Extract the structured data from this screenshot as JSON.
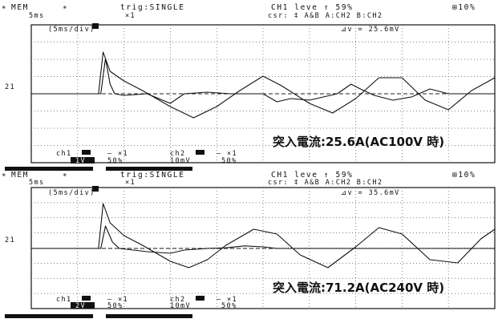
{
  "chart_data": [
    {
      "type": "line",
      "header": {
        "mode": "MEM",
        "star": "∗",
        "timebase": "5ms",
        "trig": "trig:SINGLE",
        "trig_level": "CH1 leve ↑  59%",
        "cursor": "csr: ‡  A&B  A:CH2 B:CH2",
        "pretrig": "⊞10%",
        "mag": "×1",
        "div": "(5ms/div)",
        "delta": "⊿v = 25.6mV",
        "ch_label": "21"
      },
      "footer": {
        "ch1": "ch1",
        "ch1_coupling": "1V",
        "ch1_mag": "— ×1",
        "ch1_pos": "50%",
        "ch2": "ch2",
        "ch2_v": "10mV",
        "ch2_mag": "— ×1",
        "ch2_pos": "50%"
      },
      "annotation": "突入電流:25.6A(AC100V 時)",
      "x_divisions": 10,
      "y_divisions": 8,
      "series": [
        {
          "points": [
            [
              0,
              0
            ],
            [
              1.5,
              0
            ],
            [
              1.6,
              1.1
            ],
            [
              1.7,
              0.3
            ],
            [
              1.8,
              0
            ],
            [
              2.0,
              -0.05
            ],
            [
              2.5,
              0
            ],
            [
              3.0,
              -0.3
            ],
            [
              3.3,
              0
            ],
            [
              3.8,
              0.05
            ],
            [
              4.3,
              0
            ],
            [
              5.0,
              0
            ],
            [
              5.3,
              -0.25
            ],
            [
              5.6,
              -0.15
            ],
            [
              6.0,
              -0.2
            ],
            [
              6.6,
              0
            ],
            [
              6.9,
              0.3
            ],
            [
              7.1,
              0.15
            ],
            [
              7.4,
              -0.05
            ],
            [
              7.8,
              -0.2
            ],
            [
              8.2,
              -0.1
            ],
            [
              8.6,
              0.15
            ],
            [
              9.0,
              0
            ],
            [
              10,
              0
            ]
          ]
        },
        {
          "points": [
            [
              0,
              0
            ],
            [
              1.45,
              0
            ],
            [
              1.55,
              1.3
            ],
            [
              1.7,
              0.7
            ],
            [
              2.0,
              0.4
            ],
            [
              2.4,
              0.1
            ],
            [
              3.0,
              -0.4
            ],
            [
              3.5,
              -0.75
            ],
            [
              4.0,
              -0.4
            ],
            [
              4.5,
              0.1
            ],
            [
              5.0,
              0.55
            ],
            [
              5.4,
              0.25
            ],
            [
              6.0,
              -0.3
            ],
            [
              6.5,
              -0.6
            ],
            [
              7.0,
              -0.15
            ],
            [
              7.5,
              0.5
            ],
            [
              8.0,
              0.5
            ],
            [
              8.5,
              -0.2
            ],
            [
              9.0,
              -0.5
            ],
            [
              9.5,
              0.1
            ],
            [
              10,
              0.5
            ]
          ]
        }
      ]
    },
    {
      "type": "line",
      "header": {
        "mode": "MEM",
        "star": "∗",
        "timebase": "5ms",
        "trig": "trig:SINGLE",
        "trig_level": "CH1 leve ↑  59%",
        "cursor": "csr: ‡  A&B  A:CH2 B:CH2",
        "pretrig": "⊞10%",
        "mag": "×1",
        "div": "(5ms/div)",
        "delta": "⊿v = 35.6mV",
        "ch_label": "21"
      },
      "footer": {
        "ch1": "ch1",
        "ch1_coupling": "2V",
        "ch1_mag": "— ×1",
        "ch1_pos": "50%",
        "ch2": "ch2",
        "ch2_v": "10mV",
        "ch2_mag": "— ×1",
        "ch2_pos": "50%"
      },
      "annotation": "突入電流:71.2A(AC240V 時)",
      "x_divisions": 10,
      "y_divisions": 8,
      "series": [
        {
          "points": [
            [
              0,
              0
            ],
            [
              1.5,
              0
            ],
            [
              1.6,
              0.7
            ],
            [
              1.75,
              0.2
            ],
            [
              1.9,
              0
            ],
            [
              2.5,
              -0.1
            ],
            [
              3.0,
              -0.15
            ],
            [
              3.3,
              -0.05
            ],
            [
              3.8,
              0
            ],
            [
              4.2,
              0.02
            ],
            [
              4.6,
              0.08
            ],
            [
              5.0,
              0.05
            ],
            [
              5.3,
              0
            ],
            [
              10,
              0
            ]
          ]
        },
        {
          "points": [
            [
              0,
              0
            ],
            [
              1.45,
              0
            ],
            [
              1.55,
              1.4
            ],
            [
              1.7,
              0.8
            ],
            [
              2.0,
              0.4
            ],
            [
              2.4,
              0.1
            ],
            [
              3.0,
              -0.4
            ],
            [
              3.4,
              -0.6
            ],
            [
              3.8,
              -0.35
            ],
            [
              4.2,
              0.1
            ],
            [
              4.8,
              0.6
            ],
            [
              5.3,
              0.45
            ],
            [
              5.8,
              -0.2
            ],
            [
              6.4,
              -0.6
            ],
            [
              7.0,
              0.05
            ],
            [
              7.5,
              0.65
            ],
            [
              8.0,
              0.45
            ],
            [
              8.6,
              -0.35
            ],
            [
              9.2,
              -0.45
            ],
            [
              9.7,
              0.3
            ],
            [
              10,
              0.6
            ]
          ]
        }
      ]
    }
  ]
}
